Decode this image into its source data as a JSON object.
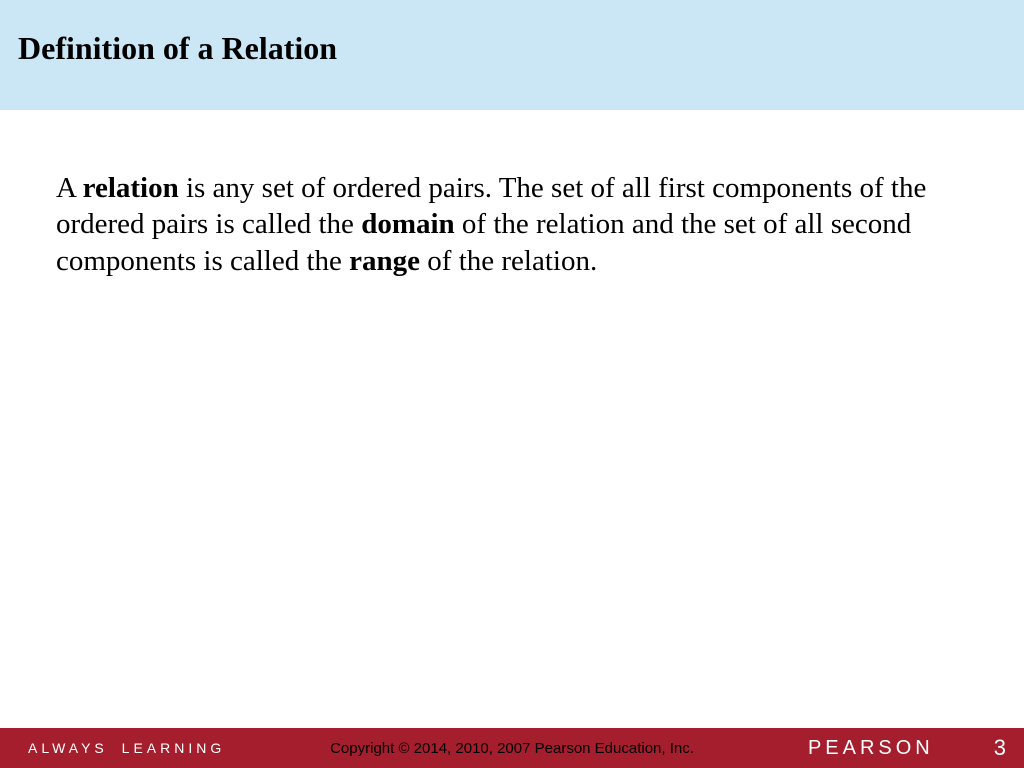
{
  "header": {
    "title": "Definition of a Relation",
    "background_color": "#cbe6f4",
    "title_color": "#000000",
    "title_fontsize": 32
  },
  "body": {
    "segments": [
      {
        "text": "A ",
        "bold": false
      },
      {
        "text": "relation",
        "bold": true
      },
      {
        "text": " is any set of ordered pairs.  The set of all first components of the ordered pairs is called the ",
        "bold": false
      },
      {
        "text": "domain",
        "bold": true
      },
      {
        "text": " of the relation and the set of all second components is called the ",
        "bold": false
      },
      {
        "text": "range",
        "bold": true
      },
      {
        "text": " of the relation.",
        "bold": false
      }
    ],
    "fontsize": 29,
    "color": "#000000"
  },
  "footer": {
    "background_color": "#a51e2d",
    "tagline_always": "ALWAYS",
    "tagline_learning": "LEARNING",
    "tagline_color": "#ffffff",
    "copyright": "Copyright © 2014, 2010, 2007 Pearson Education, Inc.",
    "copyright_color": "#000000",
    "logo": "PEARSON",
    "logo_color": "#ffffff",
    "page_number": "3",
    "page_number_color": "#ffffff"
  }
}
